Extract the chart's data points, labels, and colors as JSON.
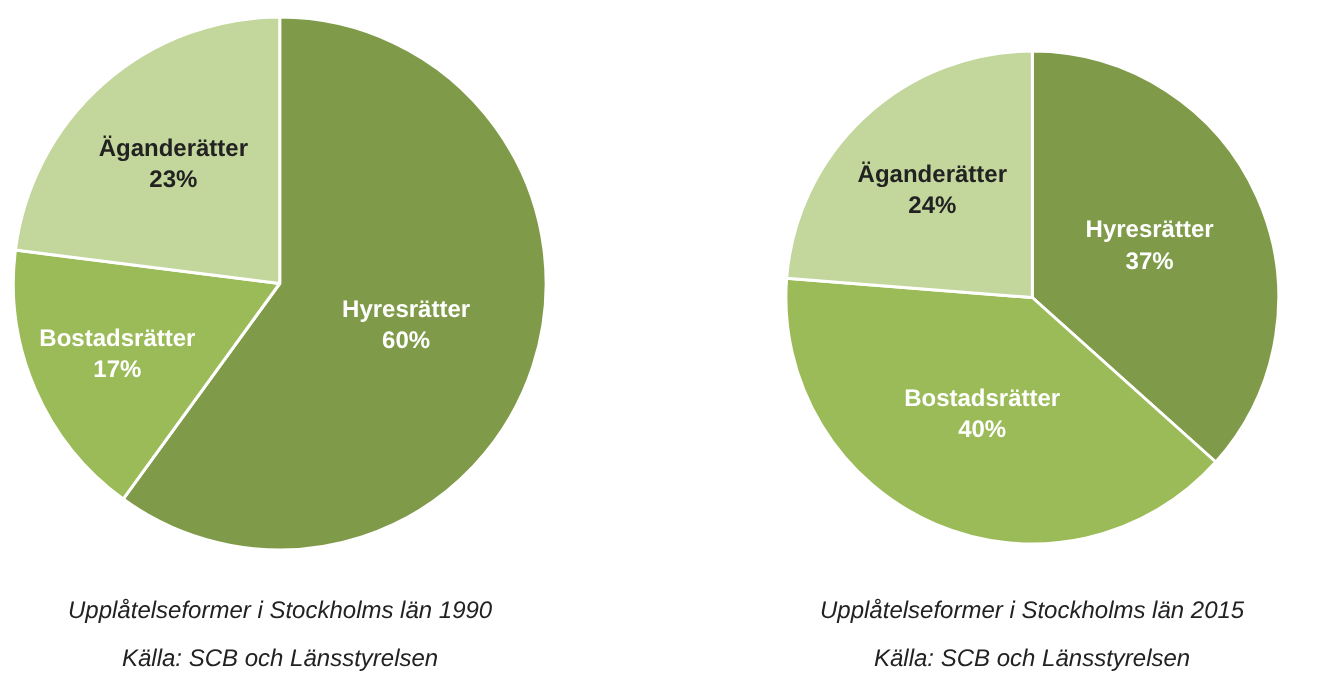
{
  "chart_data": [
    {
      "type": "pie",
      "title": "Upplåtelseformer i Stockholms län 1990",
      "annotations": [
        "Källa: SCB och Länsstyrelsen"
      ],
      "categories": [
        "Hyresrätter",
        "Bostadsrätter",
        "Äganderätter"
      ],
      "values": [
        60,
        17,
        23
      ],
      "value_labels": [
        "60%",
        "17%",
        "23%"
      ],
      "colors": [
        "#7f9a48",
        "#9bbb59",
        "#c3d69b"
      ],
      "legend": false
    },
    {
      "type": "pie",
      "title": "Upplåtelseformer i Stockholms län 2015",
      "annotations": [
        "Källa: SCB och Länsstyrelsen"
      ],
      "categories": [
        "Hyresrätter",
        "Bostadsrätter",
        "Äganderätter"
      ],
      "values": [
        37,
        40,
        24
      ],
      "value_labels": [
        "37%",
        "40%",
        "24%"
      ],
      "colors": [
        "#7f9a48",
        "#9bbb59",
        "#c3d69b"
      ],
      "legend": false
    }
  ]
}
